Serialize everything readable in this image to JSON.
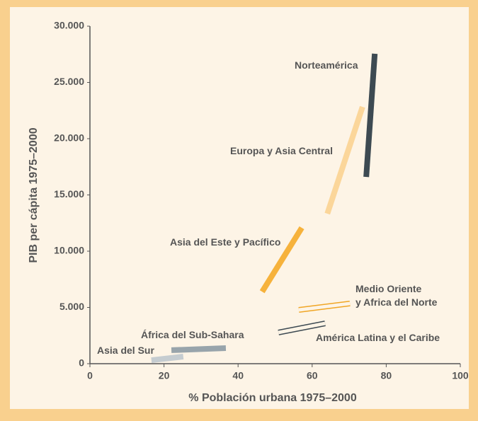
{
  "chart_data": {
    "type": "line",
    "xlabel": "% Población urbana 1975–2000",
    "ylabel": "PIB per cápita 1975–2000",
    "xlim": [
      0,
      100
    ],
    "xticks": [
      0,
      20,
      40,
      60,
      80,
      100
    ],
    "ylim": [
      0,
      30000
    ],
    "yticks": [
      0,
      {
        "value": 5000,
        "label": "5.000"
      },
      {
        "value": 10000,
        "label": "10.000"
      },
      {
        "value": 15000,
        "label": "15.000"
      },
      {
        "value": 20000,
        "label": "20.000"
      },
      {
        "value": 25000,
        "label": "25.000"
      },
      {
        "value": 30000,
        "label": "30.000"
      }
    ],
    "grid": false,
    "series": [
      {
        "name": "Norteamérica",
        "color": "#3d4a52",
        "x": [
          74.6,
          76.9
        ],
        "values": [
          16600,
          27550
        ]
      },
      {
        "name": "Europa y Asia Central",
        "color": "#fbd69a",
        "x": [
          64.1,
          73.6
        ],
        "values": [
          13330,
          22830
        ]
      },
      {
        "name": "Asia del Este y Pacífico",
        "color": "#f6b23c",
        "x": [
          46.5,
          57.2
        ],
        "values": [
          6400,
          12080
        ]
      },
      {
        "name": "Medio Oriente\ny Africa del Norte",
        "color": "#f0a626",
        "style": "outline",
        "x": [
          56.4,
          70.2
        ],
        "values": [
          4780,
          5350
        ]
      },
      {
        "name": "América Latina y el Caribe",
        "color": "#3d4a52",
        "style": "outline",
        "x": [
          50.9,
          63.5
        ],
        "values": [
          2770,
          3580
        ]
      },
      {
        "name": "África del Sub-Sahara",
        "color": "#98a4ab",
        "x": [
          22,
          36.7
        ],
        "values": [
          1200,
          1380
        ]
      },
      {
        "name": "Asia del Sur",
        "color": "#c5ccd0",
        "x": [
          16.6,
          25.2
        ],
        "values": [
          310,
          630
        ]
      }
    ]
  }
}
